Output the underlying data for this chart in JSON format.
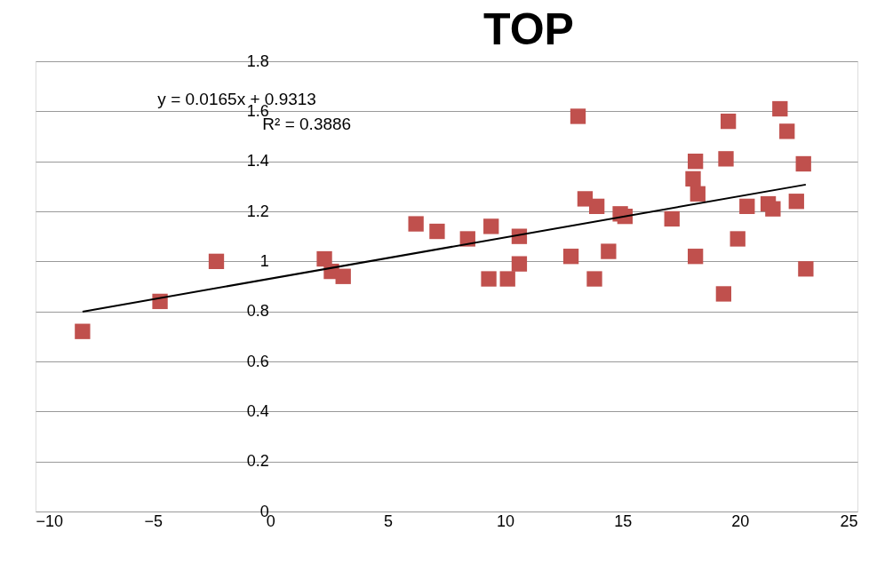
{
  "chart_data": {
    "type": "scatter",
    "title": "TOP",
    "grid": "y",
    "xlim": [
      -10,
      25
    ],
    "xticks": [
      -10,
      -5,
      0,
      5,
      10,
      15,
      20,
      25
    ],
    "ylim": [
      0,
      1.8
    ],
    "yticks": [
      0,
      0.2,
      0.4,
      0.6,
      0.8,
      1,
      1.2,
      1.4,
      1.6,
      1.8
    ],
    "annotations": [
      "y = 0.0165x + 0.9313",
      "R² = 0.3886"
    ],
    "series": [
      {
        "marker": "square",
        "color": "#c0504d",
        "x": [
          -8.0,
          -4.7,
          -2.3,
          2.3,
          2.6,
          3.1,
          6.2,
          7.1,
          8.4,
          9.4,
          9.3,
          10.1,
          10.6,
          10.6,
          13.1,
          12.8,
          13.4,
          13.9,
          13.8,
          14.4,
          14.9,
          15.1,
          17.1,
          18.0,
          18.1,
          18.2,
          18.1,
          19.3,
          19.4,
          19.5,
          19.9,
          20.3,
          21.2,
          21.4,
          21.7,
          22.0,
          22.4,
          22.7,
          22.8
        ],
        "values": [
          0.72,
          0.84,
          1.0,
          1.01,
          0.96,
          0.94,
          1.15,
          1.12,
          1.09,
          1.14,
          0.93,
          0.93,
          1.1,
          0.99,
          1.58,
          1.02,
          1.25,
          1.22,
          0.93,
          1.04,
          1.19,
          1.18,
          1.17,
          1.33,
          1.4,
          1.27,
          1.02,
          0.87,
          1.41,
          1.56,
          1.09,
          1.22,
          1.23,
          1.21,
          1.61,
          1.52,
          1.24,
          1.39,
          0.97
        ]
      },
      {
        "type": "line",
        "marker": "none",
        "color": "#000000",
        "x": [
          -8.0,
          22.8
        ],
        "values": [
          0.799,
          1.307
        ]
      }
    ]
  }
}
